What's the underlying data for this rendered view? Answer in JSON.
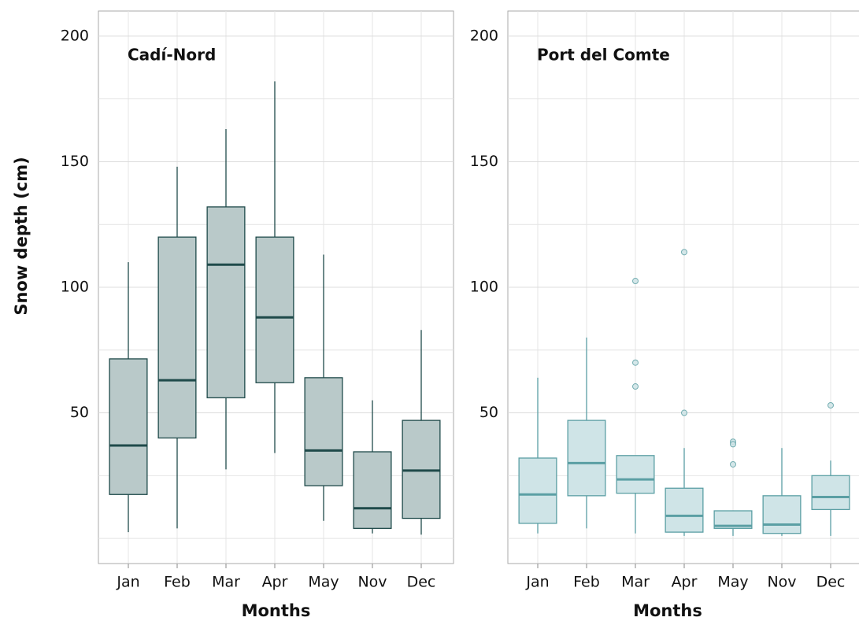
{
  "chart_data": [
    {
      "type": "box",
      "title": "Cadí-Nord",
      "ylabel": "Snow depth (cm)",
      "xlabel": "Months",
      "categories": [
        "Jan",
        "Feb",
        "Mar",
        "Apr",
        "May",
        "Nov",
        "Dec"
      ],
      "fill": "#b9c9c9",
      "color": "#1f4a4a",
      "boxes": [
        {
          "whislo": 2.5,
          "q1": 17.5,
          "med": 37,
          "q3": 71.5,
          "whishi": 110,
          "fliers": []
        },
        {
          "whislo": 4,
          "q1": 40,
          "med": 63,
          "q3": 120,
          "whishi": 148,
          "fliers": []
        },
        {
          "whislo": 27.5,
          "q1": 56,
          "med": 109,
          "q3": 132,
          "whishi": 163,
          "fliers": []
        },
        {
          "whislo": 34,
          "q1": 62,
          "med": 88,
          "q3": 120,
          "whishi": 182,
          "fliers": []
        },
        {
          "whislo": 7,
          "q1": 21,
          "med": 35,
          "q3": 64,
          "whishi": 113,
          "fliers": []
        },
        {
          "whislo": 2,
          "q1": 4,
          "med": 12,
          "q3": 34.5,
          "whishi": 55,
          "fliers": []
        },
        {
          "whislo": 1.5,
          "q1": 8,
          "med": 27,
          "q3": 47,
          "whishi": 83,
          "fliers": []
        }
      ],
      "ylim": [
        -10,
        210
      ],
      "yticks": [
        50,
        100,
        150,
        200
      ],
      "minor_yticks": [
        0,
        25,
        75,
        125,
        175
      ],
      "grid": true
    },
    {
      "type": "box",
      "title": "Port del Comte",
      "xlabel": "Months",
      "categories": [
        "Jan",
        "Feb",
        "Mar",
        "Apr",
        "May",
        "Nov",
        "Dec"
      ],
      "fill": "#cfe4e7",
      "color": "#5b9fa4",
      "boxes": [
        {
          "whislo": 2,
          "q1": 6,
          "med": 17.5,
          "q3": 32,
          "whishi": 64,
          "fliers": []
        },
        {
          "whislo": 4,
          "q1": 17,
          "med": 30,
          "q3": 47,
          "whishi": 80,
          "fliers": []
        },
        {
          "whislo": 2,
          "q1": 18,
          "med": 23.5,
          "q3": 33,
          "whishi": 33,
          "fliers": [
            102.5,
            70,
            60.5
          ]
        },
        {
          "whislo": 1,
          "q1": 2.5,
          "med": 9,
          "q3": 20,
          "whishi": 36,
          "fliers": [
            114,
            50
          ]
        },
        {
          "whislo": 1,
          "q1": 4,
          "med": 5,
          "q3": 11,
          "whishi": 11,
          "fliers": [
            38.5,
            37.5,
            29.5
          ]
        },
        {
          "whislo": 1,
          "q1": 2,
          "med": 5.5,
          "q3": 17,
          "whishi": 36,
          "fliers": []
        },
        {
          "whislo": 1,
          "q1": 11.5,
          "med": 16.5,
          "q3": 25,
          "whishi": 31,
          "fliers": [
            53
          ]
        }
      ],
      "ylim": [
        -10,
        210
      ],
      "yticks": [
        50,
        100,
        150,
        200
      ],
      "minor_yticks": [
        0,
        25,
        75,
        125,
        175
      ],
      "grid": true
    }
  ]
}
